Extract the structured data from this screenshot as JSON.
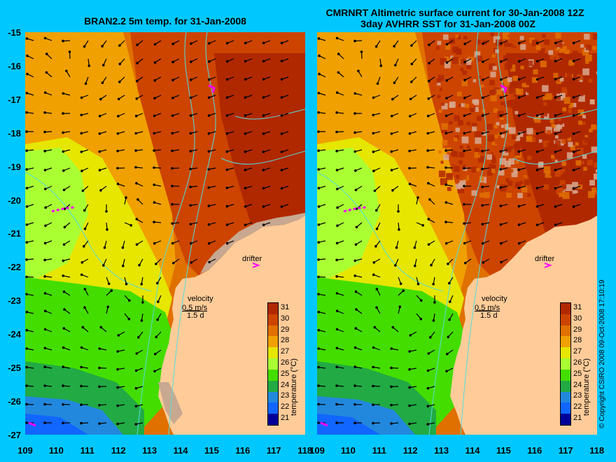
{
  "panels": [
    {
      "id": "left",
      "title_line1": "BRAN2.2 5m temp. for 31-Jan-2008",
      "title_line2": ""
    },
    {
      "id": "right",
      "title_line1": "CMRNRT Altimetric surface current for 30-Jan-2008 12Z",
      "title_line2": "3day AVHRR SST for 31-Jan-2008 00Z"
    }
  ],
  "map": {
    "lon_ticks": [
      "109",
      "110",
      "111",
      "112",
      "113",
      "114",
      "115",
      "116",
      "117",
      "118"
    ],
    "lat_ticks": [
      "-15",
      "-16",
      "-17",
      "-18",
      "-19",
      "-20",
      "-21",
      "-22",
      "-23",
      "-24",
      "-25",
      "-26",
      "-27"
    ],
    "velocity_label": "velocity",
    "velocity_scale": "0.5 m/s",
    "velocity_time": "1.5 d",
    "drifter_label": "drifter"
  },
  "colorbar": {
    "title": "temperature (°C)",
    "ticks": [
      "31",
      "30",
      "29",
      "28",
      "27",
      "26",
      "25",
      "24",
      "23",
      "22",
      "21"
    ],
    "colors": {
      "31": "#b02800",
      "30": "#cc4400",
      "29": "#e07000",
      "28": "#f0a000",
      "27": "#e6e600",
      "26": "#aaff33",
      "25": "#44dd00",
      "24": "#22aa44",
      "23": "#2288dd",
      "22": "#1166ff",
      "21": "#000099"
    }
  },
  "copyright": "© Copyright CSIRO 2008   09-Oct-2008 17:10:19",
  "colors": {
    "background": "#00c8ff",
    "land": "#ffcc99",
    "drifter": "#ff00ff",
    "contour": "#55dddd"
  }
}
